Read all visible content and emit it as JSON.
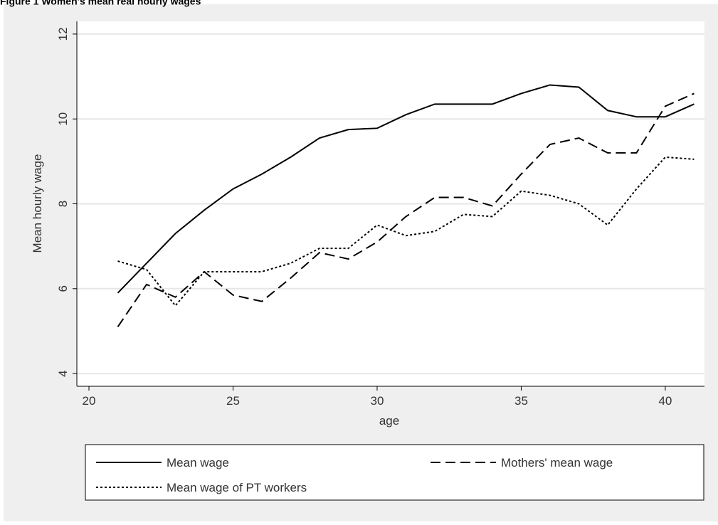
{
  "chart_data": {
    "type": "line",
    "title": "Figure 1 Women's mean real hourly wages",
    "x_label": "age",
    "y_label": "Mean hourly wage",
    "x": [
      21,
      22,
      23,
      24,
      25,
      26,
      27,
      28,
      29,
      30,
      31,
      32,
      33,
      34,
      35,
      36,
      37,
      38,
      39,
      40,
      41
    ],
    "series": [
      {
        "name": "Mean wage",
        "color": "#000000",
        "dash": "solid",
        "values": [
          5.9,
          6.6,
          7.3,
          7.85,
          8.35,
          8.7,
          9.1,
          9.55,
          9.75,
          9.78,
          10.1,
          10.35,
          10.35,
          10.35,
          10.6,
          10.8,
          10.75,
          10.2,
          10.05,
          10.05,
          10.35
        ]
      },
      {
        "name": "Mothers' mean wage",
        "color": "#000000",
        "dash": "dashed",
        "values": [
          5.1,
          6.1,
          5.8,
          6.4,
          5.85,
          5.7,
          6.25,
          6.85,
          6.7,
          7.1,
          7.7,
          8.15,
          8.15,
          7.95,
          8.7,
          9.4,
          9.55,
          9.2,
          9.2,
          10.3,
          10.6
        ]
      },
      {
        "name": "Mean wage of PT workers",
        "color": "#000000",
        "dash": "dotted",
        "values": [
          6.65,
          6.45,
          5.6,
          6.4,
          6.4,
          6.4,
          6.6,
          6.95,
          6.95,
          7.5,
          7.25,
          7.35,
          7.75,
          7.7,
          8.3,
          8.2,
          8.0,
          7.5,
          8.35,
          9.1,
          9.05
        ]
      }
    ],
    "xlim": [
      19.58,
      41.36
    ],
    "ylim": [
      3.7,
      12.3
    ],
    "xticks": [
      20,
      25,
      30,
      35,
      40
    ],
    "yticks": [
      4,
      6,
      8,
      10,
      12
    ],
    "grid": true
  }
}
